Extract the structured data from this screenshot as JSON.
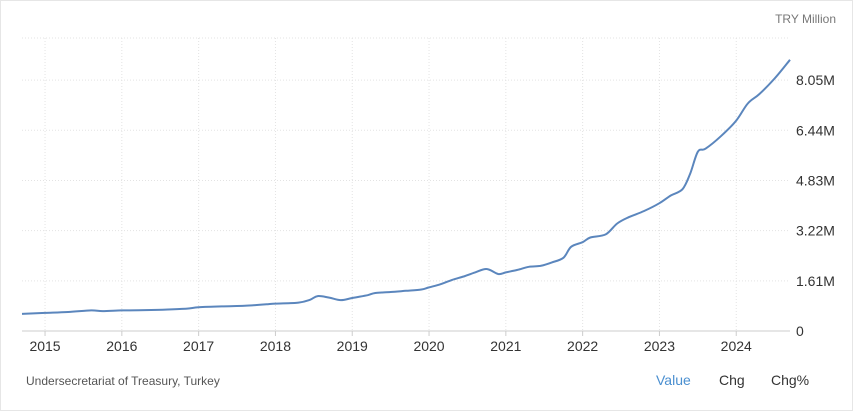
{
  "chart_data": {
    "type": "line",
    "unit_label": "TRY Million",
    "y_ticks": [
      {
        "value": 0,
        "label": "0"
      },
      {
        "value": 1.61,
        "label": "1.61M"
      },
      {
        "value": 3.22,
        "label": "3.22M"
      },
      {
        "value": 4.83,
        "label": "4.83M"
      },
      {
        "value": 6.44,
        "label": "6.44M"
      },
      {
        "value": 8.05,
        "label": "8.05M"
      }
    ],
    "x_ticks": [
      "2015",
      "2016",
      "2017",
      "2018",
      "2019",
      "2020",
      "2021",
      "2022",
      "2023",
      "2024"
    ],
    "xlim": [
      2014.7,
      2024.7
    ],
    "ylim": [
      0,
      9.4
    ],
    "grid": true,
    "line_color": "#5b86bd",
    "series": [
      {
        "x": [
          2014.7,
          2015.0,
          2015.3,
          2015.6,
          2015.75,
          2016.0,
          2016.3,
          2016.6,
          2016.85,
          2017.0,
          2017.3,
          2017.6,
          2017.9,
          2018.0,
          2018.3,
          2018.45,
          2018.55,
          2018.7,
          2018.85,
          2019.0,
          2019.2,
          2019.3,
          2019.5,
          2019.7,
          2019.9,
          2020.0,
          2020.15,
          2020.3,
          2020.45,
          2020.6,
          2020.75,
          2020.9,
          2021.0,
          2021.15,
          2021.3,
          2021.45,
          2021.6,
          2021.75,
          2021.85,
          2022.0,
          2022.1,
          2022.3,
          2022.45,
          2022.6,
          2022.8,
          2023.0,
          2023.15,
          2023.3,
          2023.4,
          2023.5,
          2023.6,
          2023.8,
          2024.0,
          2024.15,
          2024.3,
          2024.5,
          2024.7
        ],
        "y": [
          0.55,
          0.58,
          0.61,
          0.66,
          0.64,
          0.66,
          0.67,
          0.69,
          0.72,
          0.76,
          0.79,
          0.81,
          0.86,
          0.88,
          0.91,
          1.0,
          1.12,
          1.07,
          0.99,
          1.06,
          1.15,
          1.22,
          1.25,
          1.29,
          1.33,
          1.4,
          1.5,
          1.64,
          1.75,
          1.88,
          1.99,
          1.83,
          1.88,
          1.96,
          2.06,
          2.09,
          2.2,
          2.35,
          2.7,
          2.85,
          3.0,
          3.1,
          3.45,
          3.65,
          3.85,
          4.1,
          4.35,
          4.55,
          5.05,
          5.75,
          5.85,
          6.25,
          6.75,
          7.3,
          7.6,
          8.1,
          8.7
        ]
      }
    ],
    "source": "Undersecretariat of Treasury, Turkey"
  },
  "tabs": [
    {
      "label": "Value",
      "active": true
    },
    {
      "label": "Chg",
      "active": false
    },
    {
      "label": "Chg%",
      "active": false
    }
  ]
}
